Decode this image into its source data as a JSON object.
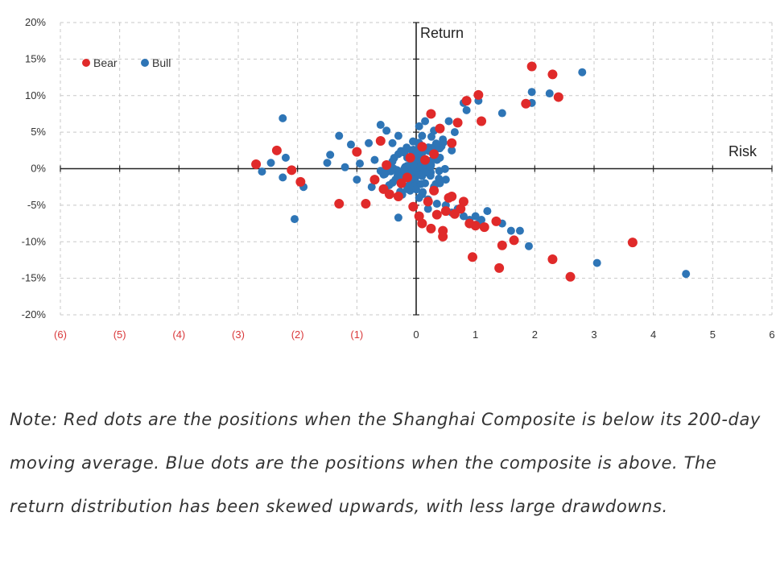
{
  "colors": {
    "bear": "#e02a2a",
    "bull": "#2e75b6",
    "negative_tick": "#d9383a",
    "axis": "#222222",
    "grid": "#c8c8c8"
  },
  "note": "Note: Red dots are the positions when the Shanghai Composite is below its 200-day moving average. Blue dots are the positions when the composite is above. The return distribution has been skewed upwards, with less large drawdowns.",
  "chart_data": {
    "type": "scatter",
    "xlabel": "Risk",
    "ylabel": "Return",
    "xlim": [
      -6,
      6
    ],
    "ylim": [
      -20,
      20
    ],
    "x_ticks": [
      -6,
      -5,
      -4,
      -3,
      -2,
      -1,
      0,
      1,
      2,
      3,
      4,
      5,
      6
    ],
    "x_tick_labels": [
      "(6)",
      "(5)",
      "(4)",
      "(3)",
      "(2)",
      "(1)",
      "0",
      "1",
      "2",
      "3",
      "4",
      "5",
      "6"
    ],
    "y_ticks": [
      20,
      15,
      10,
      5,
      0,
      -5,
      -10,
      -15,
      -20
    ],
    "y_tick_labels": [
      "20%",
      "15%",
      "10%",
      "5%",
      "0%",
      "-5%",
      "-10%",
      "-15%",
      "-20%"
    ],
    "grid": true,
    "legend": "top-left",
    "series": [
      {
        "name": "Bear",
        "color": "#e02a2a",
        "points": [
          [
            -2.7,
            0.6
          ],
          [
            -2.35,
            2.5
          ],
          [
            -2.1,
            -0.2
          ],
          [
            -1.95,
            -1.8
          ],
          [
            -1.3,
            -4.8
          ],
          [
            -1.0,
            2.3
          ],
          [
            -0.85,
            -4.8
          ],
          [
            -0.6,
            3.8
          ],
          [
            -0.55,
            -2.8
          ],
          [
            -0.45,
            -3.5
          ],
          [
            -0.3,
            -3.8
          ],
          [
            -0.25,
            -2.0
          ],
          [
            -0.15,
            -1.2
          ],
          [
            -0.1,
            1.5
          ],
          [
            -0.05,
            -5.2
          ],
          [
            0.05,
            -6.5
          ],
          [
            0.1,
            -7.5
          ],
          [
            0.1,
            3.0
          ],
          [
            0.2,
            -4.5
          ],
          [
            0.25,
            -8.2
          ],
          [
            0.25,
            7.5
          ],
          [
            0.3,
            -3.0
          ],
          [
            0.3,
            2.0
          ],
          [
            0.35,
            -6.3
          ],
          [
            0.4,
            5.5
          ],
          [
            0.45,
            -9.3
          ],
          [
            0.45,
            -8.5
          ],
          [
            0.5,
            -5.8
          ],
          [
            0.55,
            -4.0
          ],
          [
            0.6,
            3.5
          ],
          [
            0.65,
            -6.2
          ],
          [
            0.7,
            6.3
          ],
          [
            0.75,
            -5.5
          ],
          [
            0.8,
            -4.5
          ],
          [
            0.85,
            9.3
          ],
          [
            0.9,
            -7.5
          ],
          [
            0.95,
            -12.1
          ],
          [
            1.0,
            -7.8
          ],
          [
            1.05,
            10.1
          ],
          [
            1.1,
            6.5
          ],
          [
            1.15,
            -8.0
          ],
          [
            1.35,
            -7.2
          ],
          [
            1.4,
            -13.6
          ],
          [
            1.45,
            -10.5
          ],
          [
            1.65,
            -9.8
          ],
          [
            1.85,
            8.9
          ],
          [
            1.95,
            14.0
          ],
          [
            2.3,
            12.9
          ],
          [
            2.3,
            -12.4
          ],
          [
            2.4,
            9.8
          ],
          [
            2.6,
            -14.8
          ],
          [
            3.65,
            -10.1
          ],
          [
            -0.5,
            0.5
          ],
          [
            -0.7,
            -1.5
          ],
          [
            0.15,
            1.2
          ],
          [
            0.6,
            -3.8
          ]
        ]
      },
      {
        "name": "Bull",
        "color": "#2e75b6",
        "points": [
          [
            -2.6,
            -0.4
          ],
          [
            -2.45,
            0.8
          ],
          [
            -2.25,
            6.9
          ],
          [
            -2.25,
            -1.2
          ],
          [
            -2.2,
            1.5
          ],
          [
            -2.05,
            -6.9
          ],
          [
            -1.9,
            -2.5
          ],
          [
            -1.5,
            0.8
          ],
          [
            -1.45,
            1.9
          ],
          [
            -1.3,
            4.5
          ],
          [
            -1.2,
            0.2
          ],
          [
            -1.1,
            3.3
          ],
          [
            -1.0,
            -1.5
          ],
          [
            -0.95,
            0.7
          ],
          [
            -0.8,
            3.5
          ],
          [
            -0.75,
            -2.5
          ],
          [
            -0.7,
            1.2
          ],
          [
            -0.6,
            6.0
          ],
          [
            -0.55,
            -0.8
          ],
          [
            -0.5,
            5.2
          ],
          [
            -0.4,
            3.5
          ],
          [
            -0.35,
            -1.5
          ],
          [
            -0.3,
            -6.7
          ],
          [
            -0.3,
            4.5
          ],
          [
            -0.2,
            2.2
          ],
          [
            -0.15,
            -2.8
          ],
          [
            -0.1,
            0.5
          ],
          [
            0.05,
            5.8
          ],
          [
            0.1,
            -3.5
          ],
          [
            0.15,
            6.5
          ],
          [
            0.2,
            -4.2
          ],
          [
            0.3,
            5.2
          ],
          [
            0.35,
            -4.8
          ],
          [
            0.4,
            -2.0
          ],
          [
            0.45,
            4.0
          ],
          [
            0.5,
            -5.0
          ],
          [
            0.55,
            6.5
          ],
          [
            0.6,
            -6.0
          ],
          [
            0.65,
            5.0
          ],
          [
            0.7,
            -5.5
          ],
          [
            0.8,
            9.0
          ],
          [
            0.8,
            -6.5
          ],
          [
            0.85,
            8.0
          ],
          [
            0.9,
            -7.0
          ],
          [
            1.0,
            -6.5
          ],
          [
            1.05,
            9.3
          ],
          [
            1.05,
            -7.5
          ],
          [
            1.1,
            -7.0
          ],
          [
            1.2,
            -5.8
          ],
          [
            1.45,
            7.6
          ],
          [
            1.45,
            -7.5
          ],
          [
            1.6,
            -8.5
          ],
          [
            1.75,
            -8.5
          ],
          [
            1.9,
            -10.6
          ],
          [
            1.95,
            9.0
          ],
          [
            1.95,
            10.5
          ],
          [
            2.25,
            10.3
          ],
          [
            2.8,
            13.2
          ],
          [
            3.05,
            -12.9
          ],
          [
            4.55,
            -14.4
          ],
          [
            -0.05,
            -0.5
          ],
          [
            0.0,
            1.0
          ],
          [
            0.1,
            -1.0
          ],
          [
            0.2,
            2.5
          ],
          [
            -0.25,
            -1.0
          ],
          [
            0.3,
            -2.5
          ],
          [
            0.05,
            3.5
          ],
          [
            -0.1,
            -3.0
          ],
          [
            0.25,
            0.5
          ],
          [
            -0.4,
            1.0
          ],
          [
            0.15,
            -2.0
          ],
          [
            0.35,
            3.0
          ],
          [
            -0.2,
            0.0
          ],
          [
            0.0,
            -2.0
          ],
          [
            0.4,
            1.5
          ],
          [
            -0.3,
            2.0
          ],
          [
            0.5,
            -1.5
          ],
          [
            0.1,
            4.5
          ],
          [
            -0.15,
            1.5
          ],
          [
            0.2,
            -5.5
          ],
          [
            0.6,
            2.5
          ],
          [
            -0.6,
            -0.3
          ],
          [
            0.0,
            0.3
          ],
          [
            0.05,
            -4.0
          ]
        ]
      }
    ]
  }
}
